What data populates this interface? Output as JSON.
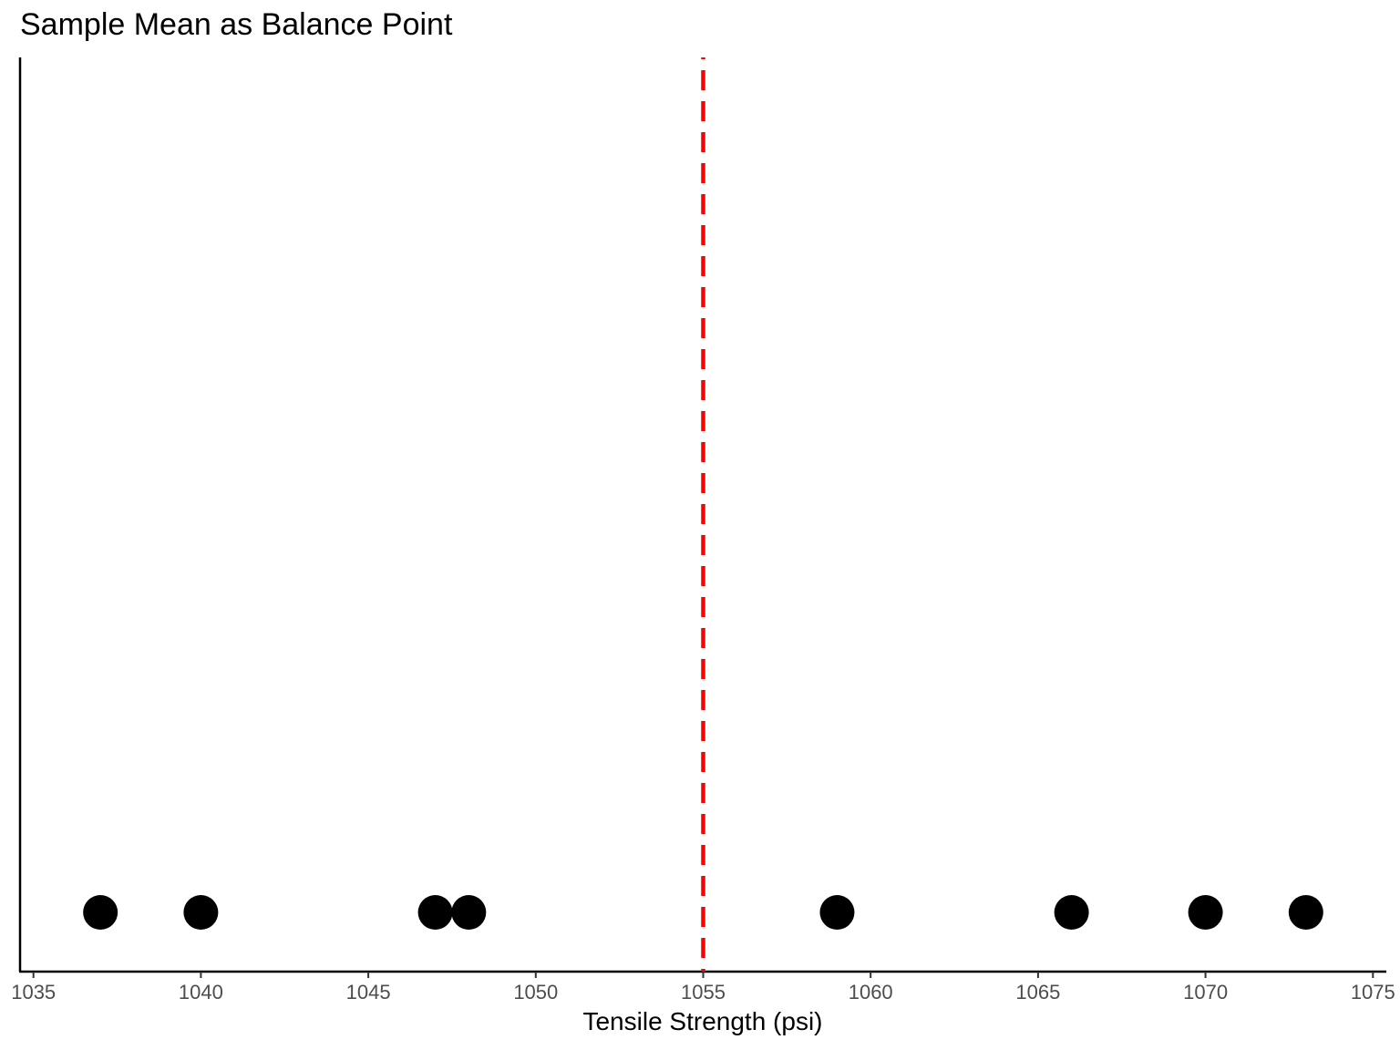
{
  "chart_data": {
    "type": "scatter",
    "title": "Sample Mean as Balance Point",
    "xlabel": "Tensile Strength (psi)",
    "ylabel": "",
    "x": [
      1037,
      1040,
      1047,
      1048,
      1059,
      1066,
      1070,
      1073
    ],
    "xlim": [
      1034.6,
      1075.4
    ],
    "xticks": [
      1035,
      1040,
      1045,
      1050,
      1055,
      1060,
      1065,
      1070,
      1075
    ],
    "xtick_labels": [
      "1035",
      "1040",
      "1045",
      "1050",
      "1055",
      "1060",
      "1065",
      "1070",
      "1075"
    ],
    "mean_line": {
      "value": 1055,
      "style": "dashed",
      "color": "#ff0000"
    },
    "point_color": "#000000",
    "grid": false,
    "legend": "none"
  }
}
